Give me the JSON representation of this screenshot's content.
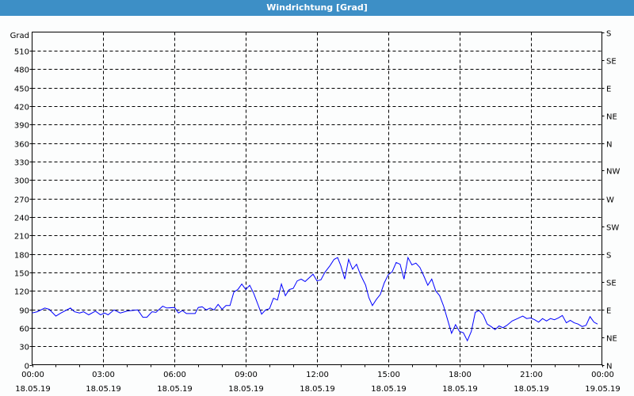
{
  "window": {
    "title": "Windrichtung [Grad]"
  },
  "chart_data": {
    "type": "line",
    "title": "Windrichtung [Grad]",
    "ylabel": "Grad",
    "ylim": [
      0,
      540
    ],
    "yticks": [
      0,
      30,
      60,
      90,
      120,
      150,
      180,
      210,
      240,
      270,
      300,
      330,
      360,
      390,
      420,
      450,
      480,
      510
    ],
    "right_axis_ticks": [
      {
        "value": 0,
        "label": "N"
      },
      {
        "value": 45,
        "label": "NE"
      },
      {
        "value": 90,
        "label": "E"
      },
      {
        "value": 135,
        "label": "SE"
      },
      {
        "value": 180,
        "label": "S"
      },
      {
        "value": 225,
        "label": "SW"
      },
      {
        "value": 270,
        "label": "W"
      },
      {
        "value": 315,
        "label": "NW"
      },
      {
        "value": 360,
        "label": "N"
      },
      {
        "value": 405,
        "label": "NE"
      },
      {
        "value": 450,
        "label": "E"
      },
      {
        "value": 495,
        "label": "SE"
      },
      {
        "value": 540,
        "label": "S"
      }
    ],
    "xlim": [
      "18.05.19 00:00",
      "19.05.19 00:00"
    ],
    "xticks": [
      {
        "time": "00:00",
        "date": "18.05.19"
      },
      {
        "time": "03:00",
        "date": "18.05.19"
      },
      {
        "time": "06:00",
        "date": "18.05.19"
      },
      {
        "time": "09:00",
        "date": "18.05.19"
      },
      {
        "time": "12:00",
        "date": "18.05.19"
      },
      {
        "time": "15:00",
        "date": "18.05.19"
      },
      {
        "time": "18:00",
        "date": "18.05.19"
      },
      {
        "time": "21:00",
        "date": "18.05.19"
      },
      {
        "time": "00:00",
        "date": "19.05.19"
      }
    ],
    "grid": true,
    "line_color": "#0000ff",
    "series": [
      {
        "x": [
          "00:00",
          "00:13",
          "00:32",
          "00:43",
          "01:00",
          "01:13",
          "01:37",
          "01:47",
          "02:00",
          "02:10",
          "02:23",
          "02:40",
          "02:53",
          "03:03",
          "03:12",
          "03:27",
          "03:43",
          "04:00",
          "04:27",
          "04:40",
          "04:50",
          "05:03",
          "05:13",
          "05:30",
          "05:40",
          "06:00",
          "06:10",
          "06:20",
          "06:30",
          "06:52",
          "07:00",
          "07:10",
          "07:20",
          "07:30",
          "07:40",
          "07:50",
          "08:00",
          "08:10",
          "08:20",
          "08:30",
          "08:40",
          "08:50",
          "09:00",
          "09:10",
          "09:20",
          "09:30",
          "09:40",
          "09:50",
          "10:00",
          "10:10",
          "10:20",
          "10:30",
          "10:40",
          "10:50",
          "11:00",
          "11:10",
          "11:20",
          "11:30",
          "11:50",
          "12:00",
          "12:10",
          "12:20",
          "12:33",
          "12:43",
          "12:52",
          "13:00",
          "13:10",
          "13:20",
          "13:30",
          "13:40",
          "13:50",
          "14:03",
          "14:11",
          "14:20",
          "14:30",
          "14:40",
          "14:50",
          "15:00",
          "15:10",
          "15:20",
          "15:30",
          "15:40",
          "15:50",
          "16:00",
          "16:10",
          "16:20",
          "16:30",
          "16:40",
          "16:50",
          "17:00",
          "17:10",
          "17:20",
          "17:30",
          "17:40",
          "17:50",
          "18:00",
          "18:10",
          "18:20",
          "18:30",
          "18:40",
          "18:50",
          "19:00",
          "19:10",
          "19:20",
          "19:30",
          "19:40",
          "19:50",
          "20:00",
          "20:13",
          "20:27",
          "20:40",
          "20:50",
          "21:00",
          "21:10",
          "21:20",
          "21:30",
          "21:40",
          "21:50",
          "22:00",
          "22:10",
          "22:20",
          "22:30",
          "22:40",
          "22:50",
          "23:00",
          "23:10",
          "23:20",
          "23:30",
          "23:40",
          "23:49"
        ],
        "y": [
          84,
          86,
          92,
          90,
          79,
          84,
          92,
          86,
          84,
          86,
          81,
          87,
          81,
          84,
          81,
          89,
          84,
          87,
          89,
          77,
          77,
          86,
          85,
          95,
          92,
          93,
          84,
          88,
          83,
          83,
          93,
          94,
          89,
          92,
          89,
          98,
          90,
          96,
          96,
          118,
          122,
          131,
          122,
          129,
          116,
          99,
          82,
          89,
          91,
          108,
          105,
          131,
          112,
          122,
          124,
          136,
          139,
          135,
          147,
          136,
          138,
          150,
          161,
          171,
          174,
          161,
          139,
          171,
          155,
          163,
          146,
          129,
          109,
          96,
          106,
          114,
          133,
          146,
          151,
          166,
          163,
          139,
          174,
          162,
          165,
          158,
          144,
          129,
          139,
          120,
          112,
          95,
          73,
          51,
          65,
          54,
          52,
          39,
          54,
          85,
          88,
          81,
          66,
          62,
          57,
          63,
          60,
          64,
          71,
          75,
          79,
          75,
          76,
          73,
          69,
          75,
          71,
          75,
          73,
          76,
          80,
          68,
          72,
          68,
          66,
          62,
          64,
          78,
          69,
          66
        ]
      }
    ]
  }
}
